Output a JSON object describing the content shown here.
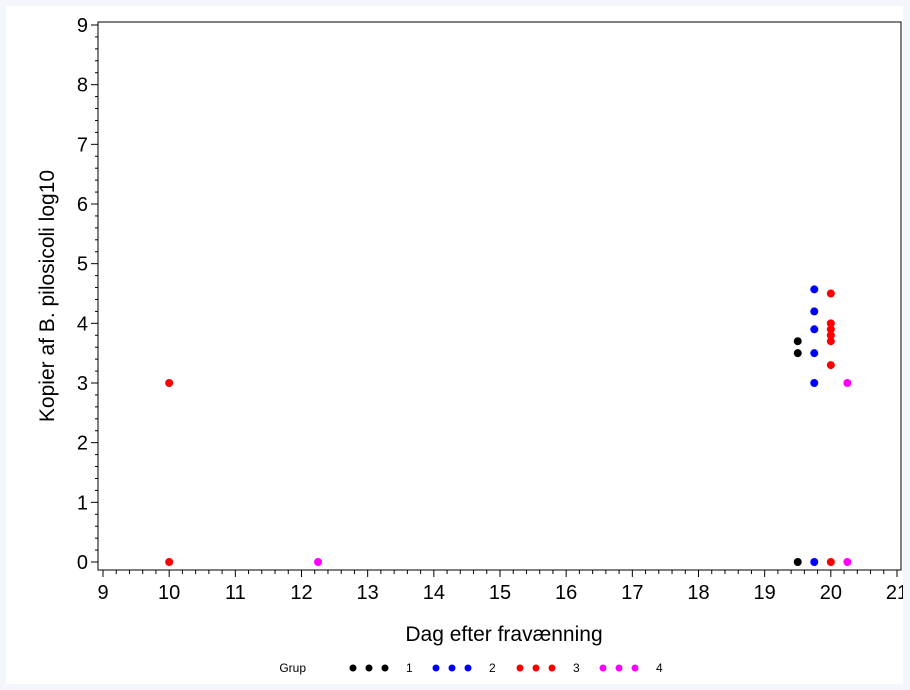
{
  "chart_data": {
    "type": "scatter",
    "title": "",
    "xlabel": "Dag efter fravænning",
    "ylabel": "Kopier af B. pilosicoli log10",
    "xlim": [
      9,
      21
    ],
    "ylim": [
      0,
      9
    ],
    "x_ticks": [
      "9",
      "10",
      "11",
      "12",
      "13",
      "14",
      "15",
      "16",
      "17",
      "18",
      "19",
      "20",
      "21"
    ],
    "y_ticks": [
      "0",
      "1",
      "2",
      "3",
      "4",
      "5",
      "6",
      "7",
      "8",
      "9"
    ],
    "grid": false,
    "legend_position": "bottom",
    "legend_title": "Grup",
    "series": [
      {
        "name": "1",
        "color": "#000000",
        "points": [
          [
            19.5,
            0
          ],
          [
            19.5,
            3.5
          ],
          [
            19.5,
            3.7
          ]
        ]
      },
      {
        "name": "2",
        "color": "#0000ff",
        "points": [
          [
            19.75,
            0
          ],
          [
            19.75,
            3.0
          ],
          [
            19.75,
            3.5
          ],
          [
            19.75,
            3.9
          ],
          [
            19.75,
            4.2
          ],
          [
            19.75,
            4.57
          ]
        ]
      },
      {
        "name": "3",
        "color": "#ff0000",
        "points": [
          [
            10,
            0
          ],
          [
            10,
            3.0
          ],
          [
            20,
            0
          ],
          [
            20,
            3.3
          ],
          [
            20,
            3.7
          ],
          [
            20,
            3.8
          ],
          [
            20,
            3.9
          ],
          [
            20,
            4.0
          ],
          [
            20,
            4.5
          ]
        ]
      },
      {
        "name": "4",
        "color": "#ff00ff",
        "points": [
          [
            12.25,
            0
          ],
          [
            20.25,
            0
          ],
          [
            20.25,
            3.0
          ]
        ]
      }
    ]
  }
}
